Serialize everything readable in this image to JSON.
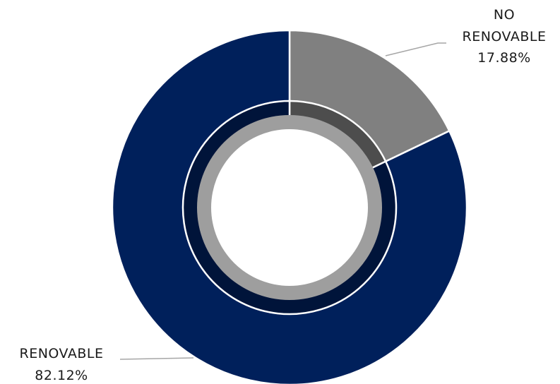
{
  "chart_data": {
    "type": "pie",
    "style": "donut",
    "title": "",
    "legend": "none",
    "slices": [
      {
        "label": "NO RENOVABLE",
        "label_lines": [
          "NO",
          "RENOVABLE"
        ],
        "value": 17.88,
        "value_label": "17.88%",
        "color": "#808080",
        "inner_shade": "#4d4d4d"
      },
      {
        "label": "RENOVABLE",
        "label_lines": [
          "RENOVABLE"
        ],
        "value": 82.12,
        "value_label": "82.12%",
        "color": "#00205b",
        "inner_shade": "#00143a"
      }
    ],
    "center_ring_color": "#9e9e9e",
    "leader_line_color": "#a6a6a6"
  }
}
